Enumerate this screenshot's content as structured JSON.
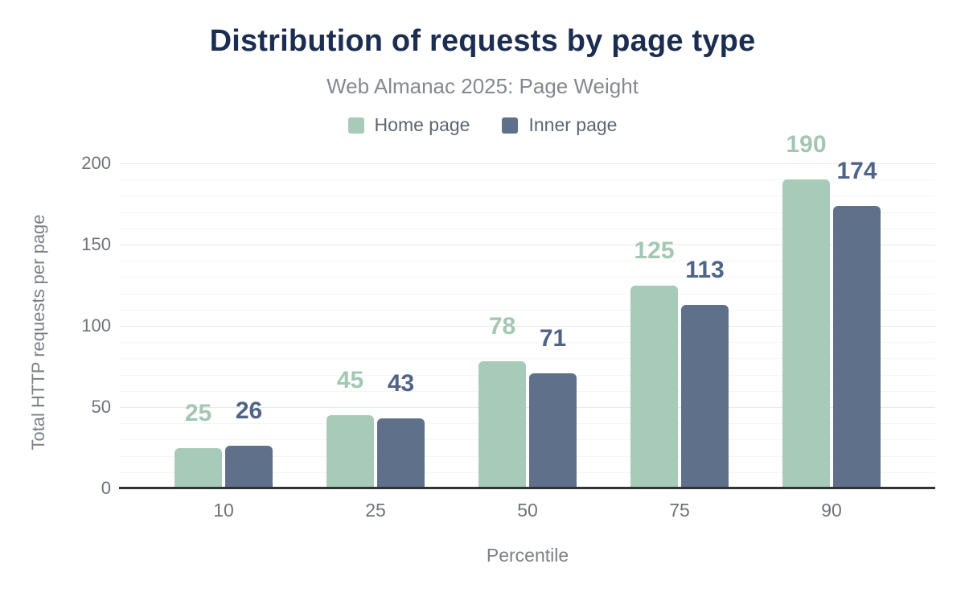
{
  "header": {
    "title": "Distribution of requests by page type",
    "subtitle": "Web Almanac 2025: Page Weight"
  },
  "chart_data": {
    "type": "bar",
    "title": "Distribution of requests by page type",
    "subtitle": "Web Almanac 2025: Page Weight",
    "xlabel": "Percentile",
    "ylabel": "Total HTTP requests per page",
    "categories": [
      "10",
      "25",
      "50",
      "75",
      "90"
    ],
    "series": [
      {
        "name": "Home page",
        "color": "#a8cab9",
        "label_color": "#a3c7b3",
        "values": [
          25,
          45,
          78,
          125,
          190
        ]
      },
      {
        "name": "Inner page",
        "color": "#5f708a",
        "label_color": "#506488",
        "values": [
          26,
          43,
          71,
          113,
          174
        ]
      }
    ],
    "ylim": [
      0,
      200
    ],
    "y_ticks": [
      0,
      50,
      100,
      150,
      200
    ],
    "minor_grid_step": 10,
    "grid": true,
    "legend_position": "top",
    "data_labels": true
  },
  "theme": {
    "background": "#ffffff",
    "title_color": "#1b2d50",
    "subtitle_color": "#84888f",
    "legend_text_color": "#5d656f",
    "tick_color": "#6e737a",
    "axis_title_color": "#7b8087",
    "axis_line_color": "#333333",
    "grid_major_color": "#e7e8ea",
    "grid_minor_color": "#f5f5f6"
  }
}
